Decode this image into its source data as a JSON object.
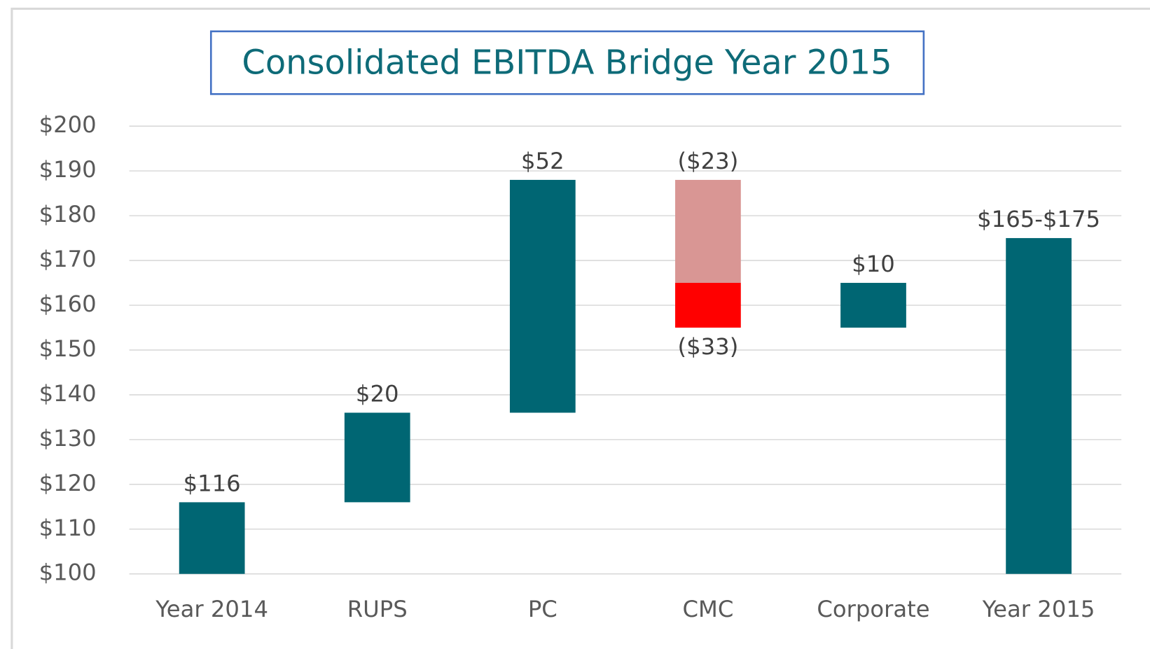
{
  "chart_data": {
    "type": "waterfall",
    "title": "Consolidated EBITDA Bridge Year 2015",
    "categories": [
      "Year 2014",
      "RUPS",
      "PC",
      "CMC",
      "Corporate",
      "Year 2015"
    ],
    "values": [
      116,
      20,
      52,
      -23,
      10,
      175
    ],
    "value_labels": [
      "$116",
      "$20",
      "$52",
      "($23)",
      "$10",
      "$165-$175"
    ],
    "low_values": [
      null,
      null,
      null,
      -33,
      null,
      null
    ],
    "low_labels": [
      null,
      null,
      null,
      "($33)",
      null,
      null
    ],
    "totals": [
      true,
      false,
      false,
      false,
      false,
      true
    ],
    "color": "#006673",
    "negative_color": "#d99694",
    "low_color": "#ff0000",
    "ylim": [
      100,
      200
    ],
    "yticks": [
      {
        "value": 100,
        "label": "$100"
      },
      {
        "value": 110,
        "label": "$110"
      },
      {
        "value": 120,
        "label": "$120"
      },
      {
        "value": 130,
        "label": "$130"
      },
      {
        "value": 140,
        "label": "$140"
      },
      {
        "value": 150,
        "label": "$150"
      },
      {
        "value": 160,
        "label": "$160"
      },
      {
        "value": 170,
        "label": "$170"
      },
      {
        "value": 180,
        "label": "$180"
      },
      {
        "value": 190,
        "label": "$190"
      },
      {
        "value": 200,
        "label": "$200"
      }
    ],
    "grid": true
  }
}
